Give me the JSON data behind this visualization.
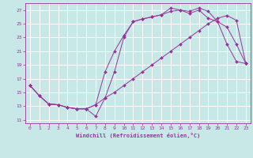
{
  "xlabel": "Windchill (Refroidissement éolien,°C)",
  "background_color": "#c8e8e8",
  "grid_color": "#ffffff",
  "line_color": "#993399",
  "x_ticks": [
    0,
    1,
    2,
    3,
    4,
    5,
    6,
    7,
    8,
    9,
    10,
    11,
    12,
    13,
    14,
    15,
    16,
    17,
    18,
    19,
    20,
    21,
    22,
    23
  ],
  "y_ticks": [
    11,
    13,
    15,
    17,
    19,
    21,
    23,
    25,
    27
  ],
  "xlim": [
    -0.5,
    23.5
  ],
  "ylim": [
    10.5,
    28.0
  ],
  "line1_x": [
    0,
    1,
    2,
    3,
    4,
    5,
    6,
    7,
    8,
    9,
    10,
    11,
    12,
    13,
    14,
    15,
    16,
    17,
    18,
    19,
    20,
    21,
    22,
    23
  ],
  "line1_y": [
    16.0,
    14.5,
    13.3,
    13.2,
    12.8,
    12.6,
    12.6,
    13.2,
    14.2,
    15.0,
    16.0,
    17.0,
    18.0,
    19.0,
    20.0,
    21.0,
    22.0,
    23.0,
    24.0,
    25.0,
    25.8,
    26.2,
    25.5,
    19.2
  ],
  "line2_x": [
    0,
    1,
    2,
    3,
    4,
    5,
    6,
    7,
    8,
    9,
    10,
    11,
    12,
    13,
    14,
    15,
    16,
    17,
    18,
    19,
    20,
    21,
    22,
    23
  ],
  "line2_y": [
    16.0,
    14.5,
    13.3,
    13.2,
    12.8,
    12.6,
    12.6,
    11.5,
    14.2,
    18.0,
    23.0,
    25.3,
    25.7,
    26.0,
    26.3,
    27.3,
    27.0,
    26.8,
    27.3,
    26.8,
    25.3,
    24.5,
    22.0,
    19.2
  ],
  "line3_x": [
    0,
    1,
    2,
    3,
    4,
    5,
    6,
    7,
    8,
    9,
    10,
    11,
    12,
    13,
    14,
    15,
    16,
    17,
    18,
    19,
    20,
    21,
    22,
    23
  ],
  "line3_y": [
    16.0,
    14.5,
    13.3,
    13.2,
    12.8,
    12.6,
    12.6,
    13.2,
    18.0,
    21.0,
    23.3,
    25.3,
    25.7,
    26.0,
    26.3,
    26.8,
    27.0,
    26.5,
    27.0,
    25.8,
    25.3,
    22.0,
    19.5,
    19.2
  ]
}
